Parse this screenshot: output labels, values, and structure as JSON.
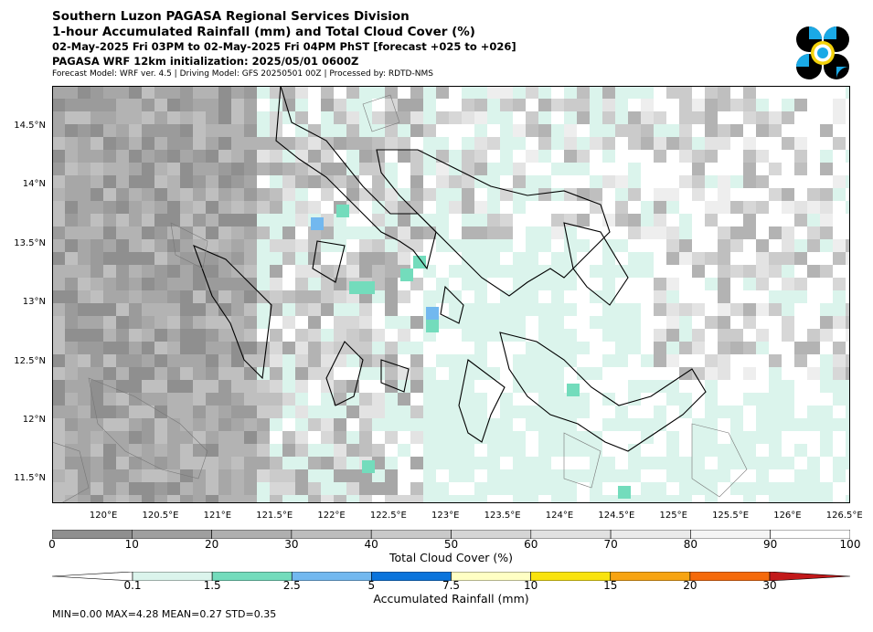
{
  "header": {
    "line1": "Southern Luzon PAGASA Regional Services Division",
    "line2": "1-hour Accumulated Rainfall (mm) and Total Cloud Cover (%)",
    "line3": "02-May-2025 Fri 03PM to 02-May-2025 Fri 04PM PhST [forecast +025 to +026]",
    "line4": "PAGASA WRF 12km initialization: 2025/05/01 0600Z",
    "line5": "Forecast Model: WRF ver. 4.5 | Driving Model: GFS 20250501 00Z | Processed by: RDTD-NMS"
  },
  "map": {
    "lat_labels": [
      "14.5°N",
      "14°N",
      "13.5°N",
      "13°N",
      "12.5°N",
      "12°N",
      "11.5°N"
    ],
    "lat_values": [
      14.5,
      14.0,
      13.5,
      13.0,
      12.5,
      12.0,
      11.5
    ],
    "lat_range": [
      11.3,
      14.85
    ],
    "lon_labels": [
      "120°E",
      "120.5°E",
      "121°E",
      "121.5°E",
      "122°E",
      "122.5°E",
      "123°E",
      "123.5°E",
      "124°E",
      "124.5°E",
      "125°E",
      "125.5°E",
      "126°E",
      "126.5°E"
    ],
    "lon_values": [
      120.0,
      120.5,
      121.0,
      121.5,
      122.0,
      122.5,
      123.0,
      123.5,
      124.0,
      124.5,
      125.0,
      125.5,
      126.0,
      126.5
    ],
    "lon_range": [
      119.55,
      126.55
    ]
  },
  "cloud_colorbar": {
    "title": "Total Cloud Cover (%)",
    "tick_labels": [
      "0",
      "10",
      "20",
      "30",
      "40",
      "50",
      "60",
      "70",
      "80",
      "90",
      "100"
    ],
    "colors": [
      "#8f8f8f",
      "#9f9f9f",
      "#afafaf",
      "#bdbdbd",
      "#c9c9c9",
      "#d5d5d5",
      "#e1e1e1",
      "#ebebeb",
      "#f5f5f5",
      "#ffffff"
    ]
  },
  "rain_colorbar": {
    "title": "Accumulated Rainfall (mm)",
    "tick_labels": [
      "0.1",
      "1.5",
      "2.5",
      "5",
      "7.5",
      "10",
      "15",
      "20",
      "30"
    ],
    "colors": [
      "#dbf4ec",
      "#73dcbc",
      "#72b8ef",
      "#0a74dc",
      "#ffffc4",
      "#f9e30e",
      "#f7a412",
      "#f56a0b",
      "#c2191a"
    ]
  },
  "stats": "MIN=0.00   MAX=4.28   MEAN=0.27   STD=0.35"
}
